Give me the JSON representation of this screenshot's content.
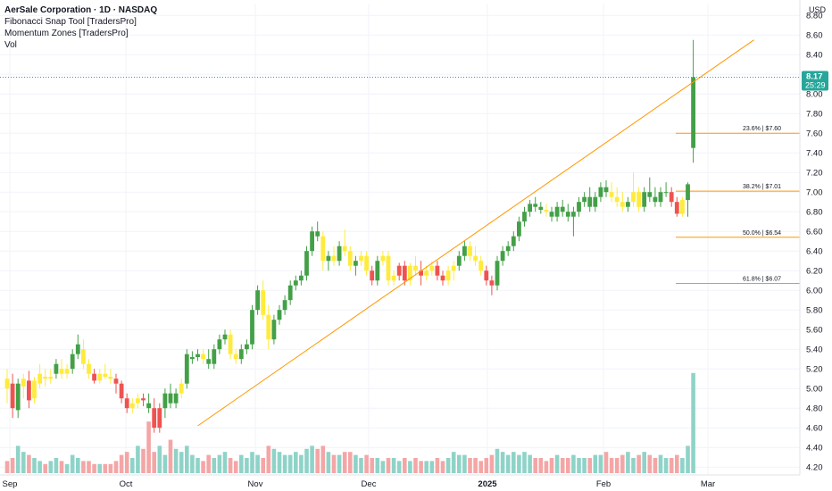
{
  "legend": {
    "title": "AerSale Corporation · 1D · NASDAQ",
    "indicators": [
      "Fibonacci Snap Tool [TradersPro]",
      "Momentum Zones [TradersPro]",
      "Vol"
    ]
  },
  "currency": "USD",
  "last_price": {
    "value": "8.17",
    "countdown": "25:29"
  },
  "colors": {
    "up": "#43a047",
    "down": "#ef5350",
    "neutral": "#ffeb3b",
    "vol_up": "#8fd3c8",
    "vol_down": "#f4a6a6",
    "fib": "#ff9800",
    "price_line": "#26a69a"
  },
  "chart_data": {
    "type": "candlestick",
    "ylim": [
      4.12,
      8.92
    ],
    "yticks": [
      "8.80",
      "8.60",
      "8.40",
      "8.20",
      "8.00",
      "7.80",
      "7.60",
      "7.40",
      "7.20",
      "7.00",
      "6.80",
      "6.60",
      "6.40",
      "6.20",
      "6.00",
      "5.80",
      "5.60",
      "5.40",
      "5.20",
      "5.00",
      "4.80",
      "4.60",
      "4.40",
      "4.20"
    ],
    "xticks": [
      "Sep",
      "Oct",
      "Nov",
      "Dec",
      "2025",
      "Feb",
      "Mar"
    ],
    "fib_levels": [
      {
        "label": "23.6% | $7.60",
        "value": 7.6
      },
      {
        "label": "38.2% | $7.01",
        "value": 7.01
      },
      {
        "label": "50.0% | $6.54",
        "value": 6.54
      },
      {
        "label": "61.8% | $6.07",
        "value": 6.07
      }
    ],
    "trendline": {
      "from": {
        "date": "2024-10-14",
        "price": 4.62
      },
      "to": {
        "date": "2025-03-06",
        "price": 8.55
      }
    },
    "candles": [
      [
        5.1,
        5.2,
        4.85,
        5.0,
        "n",
        0.2
      ],
      [
        5.05,
        5.15,
        4.7,
        4.8,
        "d",
        0.25
      ],
      [
        4.78,
        5.1,
        4.7,
        5.05,
        "u",
        0.45
      ],
      [
        5.02,
        5.15,
        4.9,
        5.1,
        "n",
        0.35
      ],
      [
        5.08,
        5.18,
        4.8,
        4.88,
        "d",
        0.3
      ],
      [
        4.9,
        5.12,
        4.85,
        5.08,
        "n",
        0.25
      ],
      [
        5.05,
        5.25,
        5.0,
        5.15,
        "n",
        0.2
      ],
      [
        5.12,
        5.2,
        5.02,
        5.1,
        "n",
        0.15
      ],
      [
        5.1,
        5.2,
        5.05,
        5.12,
        "n",
        0.2
      ],
      [
        5.15,
        5.3,
        5.1,
        5.25,
        "u",
        0.25
      ],
      [
        5.2,
        5.3,
        5.1,
        5.15,
        "n",
        0.2
      ],
      [
        5.15,
        5.25,
        5.1,
        5.2,
        "n",
        0.15
      ],
      [
        5.2,
        5.4,
        5.15,
        5.35,
        "u",
        0.3
      ],
      [
        5.35,
        5.55,
        5.3,
        5.45,
        "u",
        0.25
      ],
      [
        5.4,
        5.5,
        5.2,
        5.25,
        "n",
        0.2
      ],
      [
        5.25,
        5.3,
        5.1,
        5.15,
        "n",
        0.2
      ],
      [
        5.15,
        5.2,
        5.05,
        5.08,
        "d",
        0.15
      ],
      [
        5.08,
        5.2,
        5.05,
        5.15,
        "n",
        0.15
      ],
      [
        5.15,
        5.25,
        5.1,
        5.12,
        "n",
        0.15
      ],
      [
        5.12,
        5.2,
        5.05,
        5.1,
        "n",
        0.15
      ],
      [
        5.1,
        5.15,
        4.95,
        5.05,
        "d",
        0.2
      ],
      [
        5.05,
        5.08,
        4.85,
        4.9,
        "d",
        0.3
      ],
      [
        4.9,
        4.95,
        4.75,
        4.8,
        "d",
        0.35
      ],
      [
        4.8,
        4.9,
        4.75,
        4.85,
        "n",
        0.25
      ],
      [
        4.85,
        4.95,
        4.8,
        4.9,
        "n",
        0.45
      ],
      [
        4.9,
        4.95,
        4.82,
        4.88,
        "d",
        0.4
      ],
      [
        4.85,
        4.95,
        4.75,
        4.8,
        "u",
        0.85
      ],
      [
        4.8,
        4.9,
        4.55,
        4.6,
        "d",
        0.35
      ],
      [
        4.6,
        4.85,
        4.55,
        4.8,
        "d",
        0.45
      ],
      [
        4.8,
        5.0,
        4.7,
        4.95,
        "u",
        0.3
      ],
      [
        4.95,
        5.05,
        4.8,
        4.85,
        "u",
        0.55
      ],
      [
        4.85,
        5.0,
        4.8,
        4.95,
        "u",
        0.4
      ],
      [
        4.95,
        5.1,
        4.9,
        5.05,
        "n",
        0.35
      ],
      [
        5.05,
        5.4,
        5.0,
        5.35,
        "u",
        0.45
      ],
      [
        5.3,
        5.38,
        5.25,
        5.32,
        "u",
        0.3
      ],
      [
        5.32,
        5.4,
        5.28,
        5.35,
        "u",
        0.25
      ],
      [
        5.35,
        5.4,
        5.25,
        5.3,
        "n",
        0.2
      ],
      [
        5.3,
        5.4,
        5.2,
        5.25,
        "u",
        0.3
      ],
      [
        5.25,
        5.45,
        5.2,
        5.4,
        "u",
        0.25
      ],
      [
        5.4,
        5.55,
        5.35,
        5.5,
        "u",
        0.3
      ],
      [
        5.5,
        5.6,
        5.45,
        5.55,
        "u",
        0.35
      ],
      [
        5.55,
        5.6,
        5.3,
        5.35,
        "n",
        0.25
      ],
      [
        5.35,
        5.4,
        5.25,
        5.3,
        "n",
        0.2
      ],
      [
        5.3,
        5.45,
        5.25,
        5.4,
        "u",
        0.3
      ],
      [
        5.4,
        5.5,
        5.35,
        5.45,
        "u",
        0.25
      ],
      [
        5.45,
        5.85,
        5.4,
        5.8,
        "u",
        0.35
      ],
      [
        5.8,
        6.05,
        5.75,
        6.0,
        "u",
        0.3
      ],
      [
        6.0,
        6.1,
        5.7,
        5.75,
        "n",
        0.25
      ],
      [
        5.75,
        5.85,
        5.4,
        5.5,
        "n",
        0.45
      ],
      [
        5.5,
        5.75,
        5.45,
        5.7,
        "u",
        0.4
      ],
      [
        5.7,
        5.85,
        5.65,
        5.8,
        "u",
        0.35
      ],
      [
        5.8,
        5.95,
        5.75,
        5.9,
        "u",
        0.3
      ],
      [
        5.9,
        6.1,
        5.85,
        6.05,
        "u",
        0.3
      ],
      [
        6.05,
        6.15,
        6.0,
        6.1,
        "u",
        0.35
      ],
      [
        6.1,
        6.2,
        6.05,
        6.15,
        "u",
        0.3
      ],
      [
        6.15,
        6.45,
        6.1,
        6.4,
        "u",
        0.4
      ],
      [
        6.4,
        6.65,
        6.35,
        6.6,
        "u",
        0.45
      ],
      [
        6.6,
        6.7,
        6.5,
        6.55,
        "u",
        0.4
      ],
      [
        6.55,
        6.6,
        6.2,
        6.3,
        "n",
        0.45
      ],
      [
        6.3,
        6.4,
        6.2,
        6.35,
        "u",
        0.35
      ],
      [
        6.35,
        6.45,
        6.25,
        6.3,
        "n",
        0.3
      ],
      [
        6.3,
        6.5,
        6.25,
        6.45,
        "u",
        0.3
      ],
      [
        6.45,
        6.62,
        6.35,
        6.4,
        "n",
        0.35
      ],
      [
        6.4,
        6.45,
        6.2,
        6.25,
        "n",
        0.35
      ],
      [
        6.25,
        6.35,
        6.15,
        6.3,
        "u",
        0.3
      ],
      [
        6.3,
        6.4,
        6.25,
        6.35,
        "n",
        0.25
      ],
      [
        6.35,
        6.4,
        6.15,
        6.2,
        "n",
        0.3
      ],
      [
        6.2,
        6.25,
        6.05,
        6.1,
        "d",
        0.25
      ],
      [
        6.1,
        6.35,
        6.05,
        6.3,
        "u",
        0.25
      ],
      [
        6.3,
        6.4,
        6.25,
        6.35,
        "n",
        0.2
      ],
      [
        6.35,
        6.4,
        6.05,
        6.1,
        "n",
        0.25
      ],
      [
        6.1,
        6.2,
        6.05,
        6.15,
        "n",
        0.25
      ],
      [
        6.15,
        6.28,
        6.1,
        6.25,
        "d",
        0.2
      ],
      [
        6.25,
        6.3,
        6.05,
        6.1,
        "d",
        0.25
      ],
      [
        6.1,
        6.28,
        6.05,
        6.25,
        "n",
        0.2
      ],
      [
        6.25,
        6.35,
        6.15,
        6.2,
        "n",
        0.25
      ],
      [
        6.2,
        6.3,
        6.05,
        6.15,
        "d",
        0.2
      ],
      [
        6.15,
        6.25,
        6.1,
        6.2,
        "n",
        0.2
      ],
      [
        6.2,
        6.3,
        6.15,
        6.25,
        "n",
        0.2
      ],
      [
        6.25,
        6.3,
        6.1,
        6.15,
        "d",
        0.25
      ],
      [
        6.15,
        6.2,
        6.05,
        6.1,
        "d",
        0.2
      ],
      [
        6.1,
        6.25,
        6.05,
        6.2,
        "n",
        0.25
      ],
      [
        6.2,
        6.3,
        6.1,
        6.25,
        "n",
        0.35
      ],
      [
        6.25,
        6.4,
        6.2,
        6.35,
        "u",
        0.3
      ],
      [
        6.35,
        6.5,
        6.3,
        6.45,
        "u",
        0.3
      ],
      [
        6.45,
        6.5,
        6.3,
        6.35,
        "n",
        0.25
      ],
      [
        6.35,
        6.45,
        6.25,
        6.3,
        "n",
        0.25
      ],
      [
        6.3,
        6.35,
        6.15,
        6.2,
        "n",
        0.2
      ],
      [
        6.2,
        6.25,
        6.05,
        6.1,
        "d",
        0.25
      ],
      [
        6.1,
        6.15,
        5.95,
        6.05,
        "d",
        0.3
      ],
      [
        6.05,
        6.35,
        6.0,
        6.3,
        "u",
        0.4
      ],
      [
        6.3,
        6.45,
        6.25,
        6.4,
        "u",
        0.35
      ],
      [
        6.4,
        6.5,
        6.35,
        6.45,
        "u",
        0.3
      ],
      [
        6.45,
        6.6,
        6.4,
        6.55,
        "u",
        0.35
      ],
      [
        6.55,
        6.75,
        6.5,
        6.7,
        "u",
        0.3
      ],
      [
        6.7,
        6.85,
        6.65,
        6.8,
        "u",
        0.35
      ],
      [
        6.8,
        6.92,
        6.75,
        6.88,
        "u",
        0.3
      ],
      [
        6.88,
        6.95,
        6.8,
        6.85,
        "u",
        0.25
      ],
      [
        6.85,
        6.9,
        6.78,
        6.82,
        "u",
        0.25
      ],
      [
        6.82,
        6.88,
        6.75,
        6.8,
        "n",
        0.2
      ],
      [
        6.8,
        6.85,
        6.7,
        6.75,
        "u",
        0.25
      ],
      [
        6.75,
        6.9,
        6.7,
        6.85,
        "u",
        0.3
      ],
      [
        6.85,
        6.92,
        6.75,
        6.8,
        "u",
        0.25
      ],
      [
        6.8,
        6.88,
        6.7,
        6.75,
        "u",
        0.25
      ],
      [
        6.75,
        6.85,
        6.55,
        6.8,
        "u",
        0.3
      ],
      [
        6.8,
        6.95,
        6.75,
        6.9,
        "u",
        0.25
      ],
      [
        6.9,
        7.0,
        6.85,
        6.95,
        "u",
        0.25
      ],
      [
        6.95,
        7.05,
        6.8,
        6.85,
        "u",
        0.25
      ],
      [
        6.85,
        7.0,
        6.8,
        6.95,
        "u",
        0.3
      ],
      [
        6.95,
        7.1,
        6.9,
        7.05,
        "u",
        0.3
      ],
      [
        7.05,
        7.12,
        6.95,
        7.0,
        "u",
        0.35
      ],
      [
        7.0,
        7.1,
        6.9,
        6.95,
        "n",
        0.25
      ],
      [
        6.95,
        7.05,
        6.85,
        6.9,
        "n",
        0.25
      ],
      [
        6.9,
        7.0,
        6.8,
        6.85,
        "n",
        0.3
      ],
      [
        6.85,
        6.95,
        6.8,
        6.9,
        "u",
        0.35
      ],
      [
        6.9,
        7.2,
        6.85,
        7.0,
        "n",
        0.25
      ],
      [
        7.0,
        7.05,
        6.8,
        6.85,
        "n",
        0.3
      ],
      [
        6.85,
        7.05,
        6.8,
        7.0,
        "u",
        0.35
      ],
      [
        7.0,
        7.15,
        6.9,
        6.95,
        "u",
        0.3
      ],
      [
        6.95,
        7.05,
        6.85,
        6.9,
        "u",
        0.25
      ],
      [
        6.9,
        7.05,
        6.85,
        7.0,
        "u",
        0.3
      ],
      [
        7.0,
        7.1,
        6.95,
        7.0,
        "u",
        0.25
      ],
      [
        7.0,
        7.05,
        6.85,
        6.9,
        "d",
        0.25
      ],
      [
        6.9,
        6.95,
        6.75,
        6.78,
        "d",
        0.3
      ],
      [
        6.78,
        6.95,
        6.75,
        6.92,
        "n",
        0.25
      ],
      [
        6.92,
        7.1,
        6.75,
        7.08,
        "u",
        0.45
      ],
      [
        7.45,
        8.55,
        7.3,
        8.17,
        "u",
        1.65
      ]
    ]
  }
}
